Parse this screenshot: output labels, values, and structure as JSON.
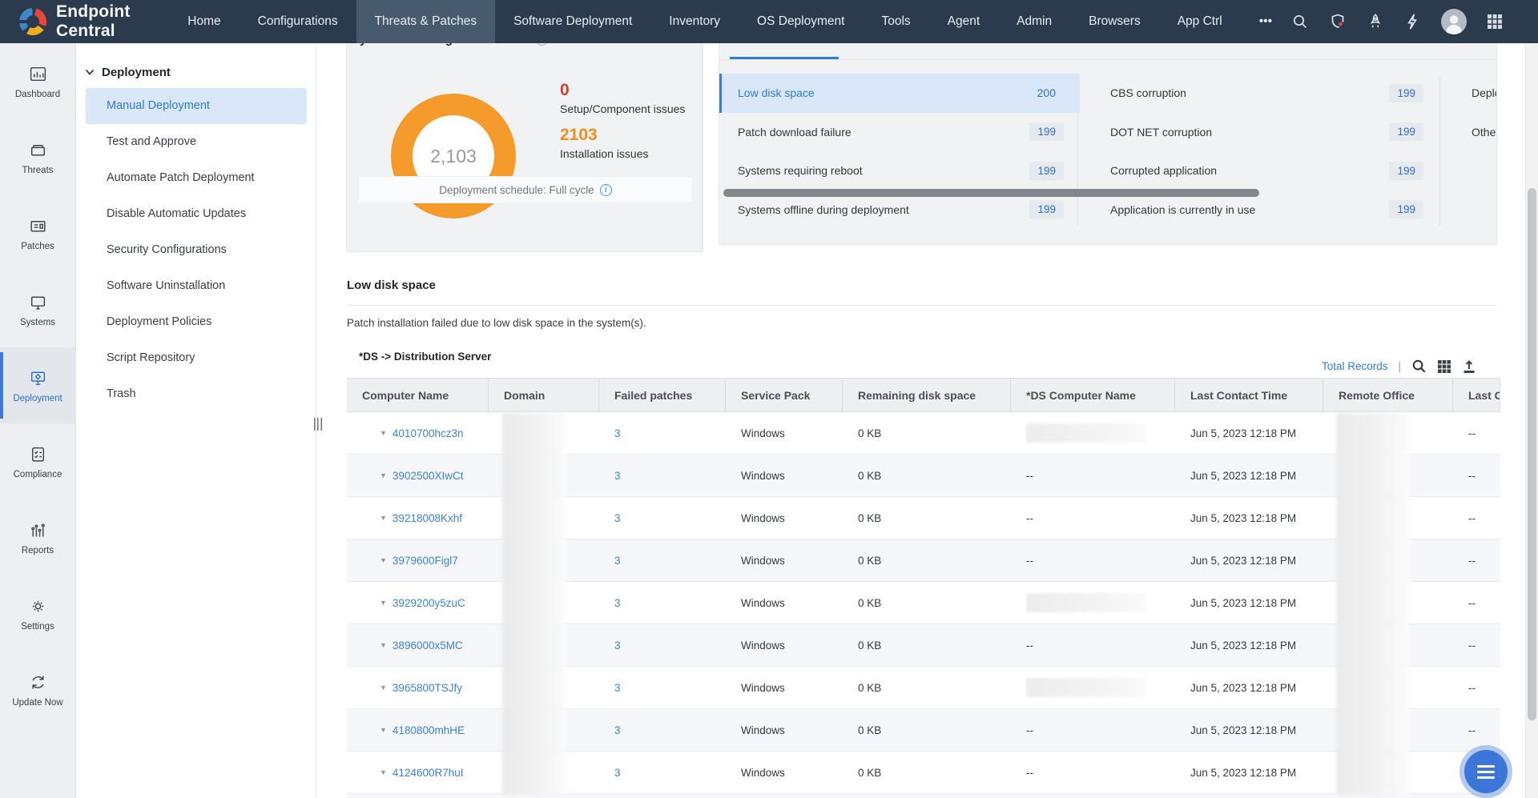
{
  "colors": {
    "navbar": "#2c3a4d",
    "nav_active": "#475a6e",
    "accent_blue": "#2e7cd6",
    "donut_orange": "#f59b2c",
    "stat_red": "#e23b30",
    "stat_orange": "#ef8d1f",
    "link_blue": "#3d82d4",
    "selected_row_bg": "#d9e7f8",
    "fab_blue": "#3b76d8",
    "computer_icon_red": "#e85250"
  },
  "nav": {
    "brand": "Endpoint Central",
    "items": [
      {
        "label": "Home"
      },
      {
        "label": "Configurations"
      },
      {
        "label": "Threats & Patches",
        "active": true
      },
      {
        "label": "Software Deployment"
      },
      {
        "label": "Inventory"
      },
      {
        "label": "OS Deployment"
      },
      {
        "label": "Tools"
      },
      {
        "label": "Agent"
      },
      {
        "label": "Admin"
      },
      {
        "label": "Browsers"
      },
      {
        "label": "App Ctrl"
      },
      {
        "label": "•••"
      }
    ],
    "icons": [
      "search-icon",
      "shield-icon",
      "rocket-icon",
      "bolt-icon",
      "avatar",
      "apps-grid-icon"
    ]
  },
  "sidebar": {
    "items": [
      {
        "label": "Dashboard",
        "icon": "dashboard"
      },
      {
        "label": "Threats",
        "icon": "threats"
      },
      {
        "label": "Patches",
        "icon": "patches"
      },
      {
        "label": "Systems",
        "icon": "systems"
      },
      {
        "label": "Deployment",
        "icon": "deployment",
        "active": true
      },
      {
        "label": "Compliance",
        "icon": "compliance"
      },
      {
        "label": "Reports",
        "icon": "reports"
      },
      {
        "label": "Settings",
        "icon": "settings"
      },
      {
        "label": "Update Now",
        "icon": "update"
      }
    ]
  },
  "subsidebar": {
    "header": "Deployment",
    "items": [
      {
        "label": "Manual Deployment",
        "active": true
      },
      {
        "label": "Test and Approve"
      },
      {
        "label": "Automate Patch Deployment"
      },
      {
        "label": "Disable Automatic Updates"
      },
      {
        "label": "Security Configurations"
      },
      {
        "label": "Software Uninstallation"
      },
      {
        "label": "Deployment Policies"
      },
      {
        "label": "Script Repository"
      },
      {
        "label": "Trash"
      }
    ]
  },
  "overview": {
    "title": "Systems awaiting troubleshoot",
    "donut_total": "2,103",
    "stats": [
      {
        "value": "0",
        "label": "Setup/Component issues"
      },
      {
        "value": "2103",
        "label": "Installation issues"
      }
    ],
    "schedule": "Deployment schedule: Full cycle"
  },
  "issues": {
    "col1": [
      {
        "label": "Low disk space",
        "count": "200",
        "selected": true
      },
      {
        "label": "Patch download failure",
        "count": "199"
      },
      {
        "label": "Systems requiring reboot",
        "count": "199"
      },
      {
        "label": "Systems offline during deployment",
        "count": "199"
      }
    ],
    "col2": [
      {
        "label": "CBS corruption",
        "count": "199"
      },
      {
        "label": "DOT NET corruption",
        "count": "199"
      },
      {
        "label": "Corrupted application",
        "count": "199"
      },
      {
        "label": "Application is currently in use",
        "count": "199"
      }
    ],
    "col3": [
      {
        "label": "Deplo"
      },
      {
        "label": "Other"
      }
    ]
  },
  "section": {
    "title": "Low disk space",
    "description": "Patch installation failed due to low disk space in the system(s).",
    "ds_note": "*DS -> Distribution Server",
    "total_records": "Total Records",
    "separator": "|"
  },
  "table": {
    "headers": [
      "Computer Name",
      "Domain",
      "Failed patches",
      "Service Pack",
      "Remaining disk space",
      "*DS Computer Name",
      "Last Contact Time",
      "Remote Office",
      "Last Co"
    ],
    "rows": [
      {
        "name": "4010700hcz3n",
        "failed": "3",
        "service_pack": "Windows",
        "remaining": "0 KB",
        "ds": "blur",
        "last_contact": "Jun 5, 2023 12:18 PM",
        "last": "--"
      },
      {
        "name": "3902500XIwCt",
        "failed": "3",
        "service_pack": "Windows",
        "remaining": "0 KB",
        "ds": "--",
        "last_contact": "Jun 5, 2023 12:18 PM",
        "last": "--"
      },
      {
        "name": "39218008Kxhf",
        "failed": "3",
        "service_pack": "Windows",
        "remaining": "0 KB",
        "ds": "--",
        "last_contact": "Jun 5, 2023 12:18 PM",
        "last": "--"
      },
      {
        "name": "3979600Figl7",
        "failed": "3",
        "service_pack": "Windows",
        "remaining": "0 KB",
        "ds": "--",
        "last_contact": "Jun 5, 2023 12:18 PM",
        "last": "--"
      },
      {
        "name": "3929200y5zuC",
        "failed": "3",
        "service_pack": "Windows",
        "remaining": "0 KB",
        "ds": "blur",
        "last_contact": "Jun 5, 2023 12:18 PM",
        "last": "--"
      },
      {
        "name": "3896000x5MC",
        "failed": "3",
        "service_pack": "Windows",
        "remaining": "0 KB",
        "ds": "--",
        "last_contact": "Jun 5, 2023 12:18 PM",
        "last": "--"
      },
      {
        "name": "3965800TSJfy",
        "failed": "3",
        "service_pack": "Windows",
        "remaining": "0 KB",
        "ds": "blur",
        "last_contact": "Jun 5, 2023 12:18 PM",
        "last": "--"
      },
      {
        "name": "4180800mhHE",
        "failed": "3",
        "service_pack": "Windows",
        "remaining": "0 KB",
        "ds": "--",
        "last_contact": "Jun 5, 2023 12:18 PM",
        "last": "--"
      },
      {
        "name": "4124600R7huI",
        "failed": "3",
        "service_pack": "Windows",
        "remaining": "0 KB",
        "ds": "--",
        "last_contact": "Jun 5, 2023 12:18 PM",
        "last": "--"
      }
    ]
  }
}
